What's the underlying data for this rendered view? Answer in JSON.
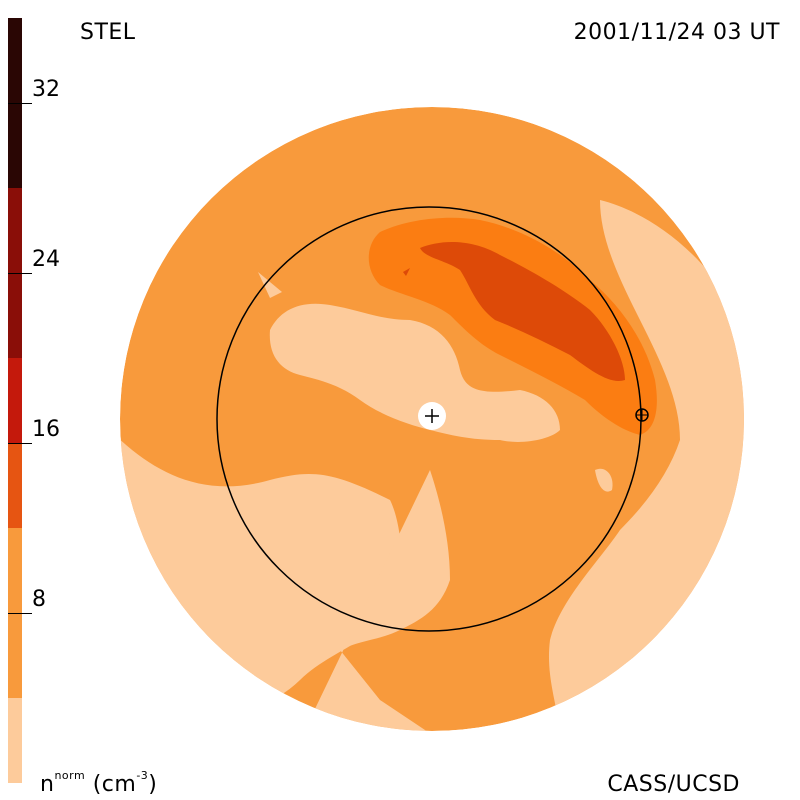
{
  "header": {
    "observatory": "STEL",
    "timestamp": "2001/11/24 03 UT"
  },
  "footer": {
    "credit": "CASS/UCSD",
    "unit_base": "n",
    "unit_sup": "norm",
    "unit_rest": " (cm",
    "unit_exp": "-3",
    "unit_close": ")"
  },
  "colorbar": {
    "min": 0,
    "max": 36,
    "ticks": [
      "8",
      "16",
      "24",
      "32"
    ],
    "tick_values": [
      8,
      16,
      24,
      32
    ],
    "levels": [
      {
        "from": 0,
        "to": 4,
        "color": "#fdcb9b"
      },
      {
        "from": 4,
        "to": 12,
        "color": "#f89a3c"
      },
      {
        "from": 12,
        "to": 16,
        "color": "#e65512"
      },
      {
        "from": 16,
        "to": 20,
        "color": "#c4190c"
      },
      {
        "from": 20,
        "to": 28,
        "color": "#8a0e08"
      },
      {
        "from": 28,
        "to": 36,
        "color": "#2a0604"
      }
    ]
  },
  "map": {
    "colors": {
      "lowest": "#fdcb9b",
      "low": "#f89a3c",
      "mid": "#fb7d12",
      "high": "#dd4a08"
    },
    "center_marker": "+",
    "earth_marker": "⊕"
  }
}
